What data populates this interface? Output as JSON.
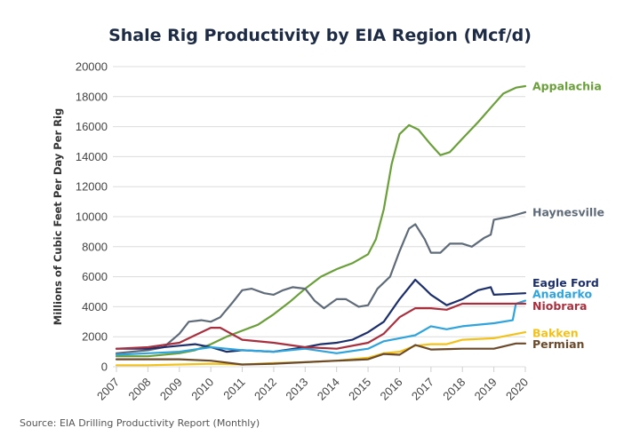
{
  "chart_data": {
    "type": "line",
    "title": "Shale Rig Productivity by EIA Region (Mcf/d)",
    "xlabel": "",
    "ylabel": "Millions of Cubic Feet Per Day Per Rig",
    "xlim": [
      2007,
      2020
    ],
    "ylim": [
      0,
      20000
    ],
    "x_ticks": [
      "2007",
      "2008",
      "2009",
      "2010",
      "2011",
      "2012",
      "2013",
      "2014",
      "2015",
      "2016",
      "2017",
      "2018",
      "2019",
      "2020"
    ],
    "y_ticks": [
      "0",
      "2000",
      "4000",
      "6000",
      "8000",
      "10000",
      "12000",
      "14000",
      "16000",
      "18000",
      "20000"
    ],
    "grid": true,
    "legend": "right (end-of-line labels)",
    "source": "Source: EIA Drilling Productivity Report (Monthly)",
    "series": [
      {
        "name": "Appalachia",
        "color": "#6a9f3a",
        "x": [
          2007,
          2008,
          2009,
          2009.5,
          2010,
          2010.5,
          2011,
          2011.5,
          2012,
          2012.5,
          2013,
          2013.5,
          2014,
          2014.5,
          2015,
          2015.25,
          2015.5,
          2015.75,
          2016,
          2016.3,
          2016.6,
          2017,
          2017.3,
          2017.6,
          2018,
          2018.5,
          2019,
          2019.3,
          2019.7,
          2020
        ],
        "values": [
          700,
          700,
          900,
          1100,
          1500,
          2000,
          2400,
          2800,
          3500,
          4300,
          5200,
          6000,
          6500,
          6900,
          7500,
          8500,
          10500,
          13500,
          15500,
          16100,
          15800,
          14800,
          14100,
          14300,
          15200,
          16300,
          17500,
          18200,
          18600,
          18700
        ]
      },
      {
        "name": "Haynesville",
        "color": "#5f6b78",
        "x": [
          2007,
          2008,
          2008.5,
          2009,
          2009.3,
          2009.7,
          2010,
          2010.3,
          2010.7,
          2011,
          2011.3,
          2011.7,
          2012,
          2012.3,
          2012.6,
          2013,
          2013.3,
          2013.6,
          2014,
          2014.3,
          2014.7,
          2015,
          2015.3,
          2015.7,
          2016,
          2016.3,
          2016.5,
          2016.8,
          2017,
          2017.3,
          2017.6,
          2018,
          2018.3,
          2018.7,
          2018.9,
          2019,
          2019.5,
          2020
        ],
        "values": [
          900,
          1100,
          1300,
          2200,
          3000,
          3100,
          3000,
          3300,
          4300,
          5100,
          5200,
          4900,
          4800,
          5100,
          5300,
          5200,
          4400,
          3900,
          4500,
          4500,
          4000,
          4100,
          5200,
          6000,
          7700,
          9200,
          9500,
          8500,
          7600,
          7600,
          8200,
          8200,
          8000,
          8600,
          8800,
          9800,
          10000,
          10300
        ]
      },
      {
        "name": "Eagle Ford",
        "color": "#1c2f6b",
        "x": [
          2007,
          2008,
          2009,
          2009.5,
          2010,
          2010.5,
          2011,
          2012,
          2013,
          2013.5,
          2014,
          2014.5,
          2015,
          2015.5,
          2016,
          2016.5,
          2016.8,
          2017,
          2017.5,
          2018,
          2018.5,
          2018.9,
          2019,
          2020
        ],
        "values": [
          1200,
          1200,
          1400,
          1500,
          1300,
          1000,
          1100,
          1000,
          1300,
          1500,
          1600,
          1800,
          2300,
          3000,
          4500,
          5800,
          5200,
          4800,
          4100,
          4500,
          5100,
          5300,
          4800,
          4900
        ]
      },
      {
        "name": "Anadarko",
        "color": "#2fa4dc",
        "x": [
          2007,
          2008,
          2009,
          2010,
          2011,
          2012,
          2013,
          2014,
          2015,
          2015.5,
          2016,
          2016.5,
          2017,
          2017.5,
          2018,
          2019,
          2019.6,
          2019.7,
          2020
        ],
        "values": [
          800,
          900,
          1000,
          1300,
          1100,
          1000,
          1200,
          900,
          1200,
          1700,
          1900,
          2100,
          2700,
          2500,
          2700,
          2900,
          3100,
          4200,
          4400
        ]
      },
      {
        "name": "Niobrara",
        "color": "#a8303e",
        "x": [
          2007,
          2008,
          2009,
          2009.5,
          2010,
          2010.3,
          2011,
          2012,
          2013,
          2014,
          2015,
          2015.5,
          2016,
          2016.5,
          2017,
          2017.5,
          2018,
          2019,
          2020
        ],
        "values": [
          1200,
          1300,
          1600,
          2100,
          2600,
          2600,
          1800,
          1600,
          1300,
          1200,
          1600,
          2200,
          3300,
          3900,
          3900,
          3800,
          4200,
          4200,
          4200
        ]
      },
      {
        "name": "Bakken",
        "color": "#f2c21b",
        "x": [
          2007,
          2008,
          2009,
          2010,
          2011,
          2012,
          2013,
          2014,
          2015,
          2015.5,
          2016,
          2016.5,
          2017,
          2017.5,
          2018,
          2019,
          2020
        ],
        "values": [
          100,
          100,
          150,
          200,
          150,
          250,
          300,
          400,
          600,
          900,
          1000,
          1400,
          1500,
          1500,
          1800,
          1900,
          2300
        ]
      },
      {
        "name": "Permian",
        "color": "#6b4a2b",
        "x": [
          2007,
          2008,
          2009,
          2010,
          2011,
          2012,
          2013,
          2014,
          2015,
          2015.5,
          2016,
          2016.5,
          2017,
          2018,
          2019,
          2019.7,
          2020
        ],
        "values": [
          500,
          500,
          500,
          400,
          150,
          200,
          300,
          400,
          500,
          850,
          800,
          1450,
          1150,
          1200,
          1200,
          1550,
          1550
        ]
      }
    ],
    "labels": [
      {
        "series": "Appalachia",
        "text": "Appalachia",
        "color": "#6a9f3a",
        "anchor_value": 18700
      },
      {
        "series": "Haynesville",
        "text": "Haynesville",
        "color": "#5f6b78",
        "anchor_value": 10300
      },
      {
        "series": "Eagle Ford",
        "text": "Eagle Ford",
        "color": "#1c2f6b",
        "anchor_value": 5600
      },
      {
        "series": "Anadarko",
        "text": "Anadarko",
        "color": "#2fa4dc",
        "anchor_value": 4850
      },
      {
        "series": "Niobrara",
        "text": "Niobrara",
        "color": "#a8303e",
        "anchor_value": 4050
      },
      {
        "series": "Bakken",
        "text": "Bakken",
        "color": "#f2c21b",
        "anchor_value": 2250
      },
      {
        "series": "Permian",
        "text": "Permian",
        "color": "#6b4a2b",
        "anchor_value": 1500
      }
    ]
  }
}
